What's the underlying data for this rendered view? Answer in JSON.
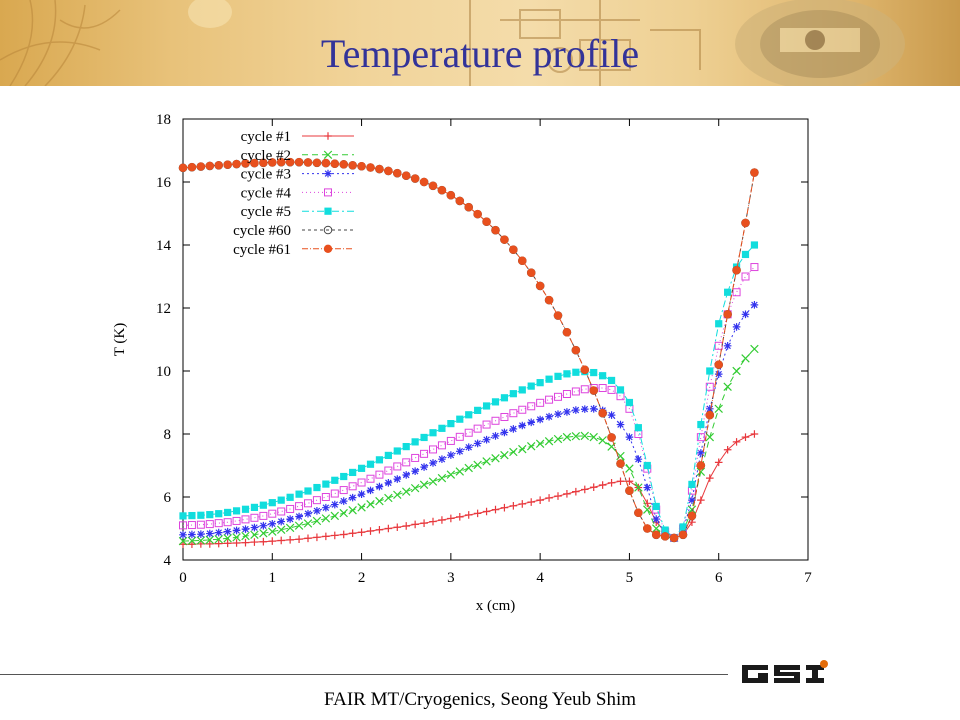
{
  "page": {
    "title": "Temperature profile",
    "footer": "FAIR MT/Cryogenics,   Seong Yeub Shim"
  },
  "logo": {
    "name": "GSI logo",
    "text": "GSI"
  },
  "chart_data": {
    "type": "line",
    "title": "",
    "xlabel": "x (cm)",
    "ylabel": "T (K)",
    "xlim": [
      0,
      7
    ],
    "ylim": [
      4,
      18
    ],
    "xticks": [
      0,
      1,
      2,
      3,
      4,
      5,
      6,
      7
    ],
    "yticks": [
      4,
      6,
      8,
      10,
      12,
      14,
      16,
      18
    ],
    "grid": false,
    "legend_position": "top-left",
    "x": [
      0.0,
      0.1,
      0.2,
      0.3,
      0.4,
      0.5,
      0.6,
      0.7,
      0.8,
      0.9,
      1.0,
      1.1,
      1.2,
      1.3,
      1.4,
      1.5,
      1.6,
      1.7,
      1.8,
      1.9,
      2.0,
      2.1,
      2.2,
      2.3,
      2.4,
      2.5,
      2.6,
      2.7,
      2.8,
      2.9,
      3.0,
      3.1,
      3.2,
      3.3,
      3.4,
      3.5,
      3.6,
      3.7,
      3.8,
      3.9,
      4.0,
      4.1,
      4.2,
      4.3,
      4.4,
      4.5,
      4.6,
      4.7,
      4.8,
      4.9,
      5.0,
      5.1,
      5.2,
      5.3,
      5.4,
      5.5,
      5.6,
      5.7,
      5.8,
      5.9,
      6.0,
      6.1,
      6.2,
      6.3,
      6.4
    ],
    "series": [
      {
        "name": "cycle #1",
        "color": "#e8383d",
        "marker": "plus",
        "dash": "",
        "values": [
          4.5,
          4.5,
          4.51,
          4.51,
          4.52,
          4.53,
          4.54,
          4.55,
          4.57,
          4.58,
          4.6,
          4.62,
          4.64,
          4.66,
          4.69,
          4.72,
          4.75,
          4.78,
          4.81,
          4.85,
          4.88,
          4.92,
          4.96,
          5.0,
          5.04,
          5.08,
          5.13,
          5.17,
          5.22,
          5.27,
          5.32,
          5.37,
          5.43,
          5.48,
          5.54,
          5.6,
          5.66,
          5.72,
          5.78,
          5.84,
          5.9,
          5.97,
          6.03,
          6.1,
          6.17,
          6.24,
          6.31,
          6.38,
          6.45,
          6.5,
          6.5,
          6.3,
          5.8,
          5.2,
          4.9,
          4.7,
          4.8,
          5.2,
          5.9,
          6.6,
          7.1,
          7.5,
          7.75,
          7.9,
          8.0
        ]
      },
      {
        "name": "cycle #2",
        "color": "#33cc33",
        "marker": "x",
        "dash": "6,4",
        "values": [
          4.6,
          4.61,
          4.62,
          4.64,
          4.66,
          4.69,
          4.72,
          4.76,
          4.8,
          4.85,
          4.9,
          4.96,
          5.02,
          5.09,
          5.16,
          5.24,
          5.32,
          5.4,
          5.49,
          5.58,
          5.67,
          5.77,
          5.87,
          5.97,
          6.07,
          6.17,
          6.28,
          6.39,
          6.49,
          6.6,
          6.71,
          6.81,
          6.92,
          7.02,
          7.13,
          7.23,
          7.33,
          7.43,
          7.52,
          7.61,
          7.69,
          7.77,
          7.84,
          7.9,
          7.93,
          7.94,
          7.9,
          7.8,
          7.6,
          7.3,
          6.9,
          6.3,
          5.6,
          5.0,
          4.8,
          4.7,
          4.9,
          5.6,
          6.8,
          7.9,
          8.8,
          9.5,
          10.0,
          10.4,
          10.7
        ]
      },
      {
        "name": "cycle #3",
        "color": "#3333ee",
        "marker": "star",
        "dash": "2,3",
        "values": [
          4.8,
          4.81,
          4.82,
          4.84,
          4.87,
          4.9,
          4.94,
          4.98,
          5.03,
          5.09,
          5.15,
          5.22,
          5.3,
          5.38,
          5.47,
          5.56,
          5.66,
          5.76,
          5.87,
          5.98,
          6.09,
          6.21,
          6.33,
          6.45,
          6.57,
          6.7,
          6.82,
          6.95,
          7.08,
          7.2,
          7.33,
          7.45,
          7.58,
          7.7,
          7.82,
          7.94,
          8.05,
          8.16,
          8.27,
          8.37,
          8.46,
          8.55,
          8.63,
          8.7,
          8.76,
          8.79,
          8.8,
          8.75,
          8.6,
          8.3,
          7.9,
          7.2,
          6.3,
          5.3,
          4.85,
          4.7,
          4.95,
          5.9,
          7.4,
          8.8,
          9.9,
          10.8,
          11.4,
          11.8,
          12.1
        ]
      },
      {
        "name": "cycle #4",
        "color": "#dd44dd",
        "marker": "square-open",
        "dash": "1,3",
        "values": [
          5.1,
          5.11,
          5.12,
          5.14,
          5.17,
          5.2,
          5.24,
          5.29,
          5.34,
          5.4,
          5.47,
          5.54,
          5.62,
          5.71,
          5.8,
          5.9,
          6.0,
          6.11,
          6.22,
          6.34,
          6.46,
          6.58,
          6.71,
          6.84,
          6.97,
          7.1,
          7.24,
          7.37,
          7.51,
          7.64,
          7.78,
          7.91,
          8.04,
          8.17,
          8.3,
          8.42,
          8.54,
          8.66,
          8.77,
          8.88,
          8.99,
          9.09,
          9.18,
          9.27,
          9.35,
          9.42,
          9.46,
          9.46,
          9.4,
          9.2,
          8.8,
          8.0,
          6.9,
          5.6,
          4.9,
          4.7,
          5.0,
          6.2,
          7.9,
          9.5,
          10.8,
          11.8,
          12.5,
          13.0,
          13.3
        ]
      },
      {
        "name": "cycle #5",
        "color": "#11dddd",
        "marker": "square-filled",
        "dash": "7,3,2,3",
        "values": [
          5.4,
          5.41,
          5.42,
          5.44,
          5.47,
          5.51,
          5.56,
          5.61,
          5.67,
          5.74,
          5.82,
          5.9,
          5.99,
          6.09,
          6.19,
          6.3,
          6.41,
          6.53,
          6.65,
          6.78,
          6.91,
          7.04,
          7.18,
          7.32,
          7.46,
          7.6,
          7.75,
          7.89,
          8.04,
          8.18,
          8.33,
          8.47,
          8.61,
          8.75,
          8.89,
          9.02,
          9.15,
          9.28,
          9.4,
          9.52,
          9.63,
          9.74,
          9.83,
          9.91,
          9.96,
          9.98,
          9.95,
          9.85,
          9.7,
          9.4,
          9.0,
          8.2,
          7.0,
          5.7,
          4.95,
          4.7,
          5.05,
          6.4,
          8.3,
          10.0,
          11.5,
          12.5,
          13.3,
          13.7,
          14.0
        ]
      },
      {
        "name": "cycle #60",
        "color": "#444444",
        "marker": "circle-open",
        "dash": "3,3",
        "values": [
          16.45,
          16.47,
          16.49,
          16.51,
          16.53,
          16.55,
          16.57,
          16.59,
          16.6,
          16.61,
          16.62,
          16.63,
          16.63,
          16.63,
          16.62,
          16.61,
          16.6,
          16.58,
          16.56,
          16.53,
          16.5,
          16.46,
          16.41,
          16.35,
          16.28,
          16.2,
          16.11,
          16.0,
          15.88,
          15.74,
          15.58,
          15.4,
          15.2,
          14.98,
          14.74,
          14.47,
          14.17,
          13.85,
          13.5,
          13.12,
          12.7,
          12.25,
          11.76,
          11.23,
          10.66,
          10.04,
          9.38,
          8.66,
          7.89,
          7.06,
          6.2,
          5.5,
          5.0,
          4.8,
          4.75,
          4.7,
          4.8,
          5.4,
          7.0,
          8.6,
          10.2,
          11.8,
          13.2,
          14.7,
          16.3
        ]
      },
      {
        "name": "cycle #61",
        "color": "#e8501e",
        "marker": "circle-filled",
        "dash": "6,2,1,2",
        "values": [
          16.45,
          16.47,
          16.49,
          16.51,
          16.53,
          16.55,
          16.57,
          16.59,
          16.6,
          16.61,
          16.62,
          16.63,
          16.63,
          16.63,
          16.62,
          16.61,
          16.6,
          16.58,
          16.56,
          16.53,
          16.5,
          16.46,
          16.41,
          16.35,
          16.28,
          16.2,
          16.11,
          16.0,
          15.88,
          15.74,
          15.58,
          15.4,
          15.2,
          14.98,
          14.74,
          14.47,
          14.17,
          13.85,
          13.5,
          13.12,
          12.7,
          12.25,
          11.76,
          11.23,
          10.66,
          10.04,
          9.38,
          8.66,
          7.89,
          7.06,
          6.2,
          5.5,
          5.0,
          4.8,
          4.75,
          4.7,
          4.8,
          5.4,
          7.0,
          8.6,
          10.2,
          11.8,
          13.2,
          14.7,
          16.3
        ]
      }
    ]
  }
}
